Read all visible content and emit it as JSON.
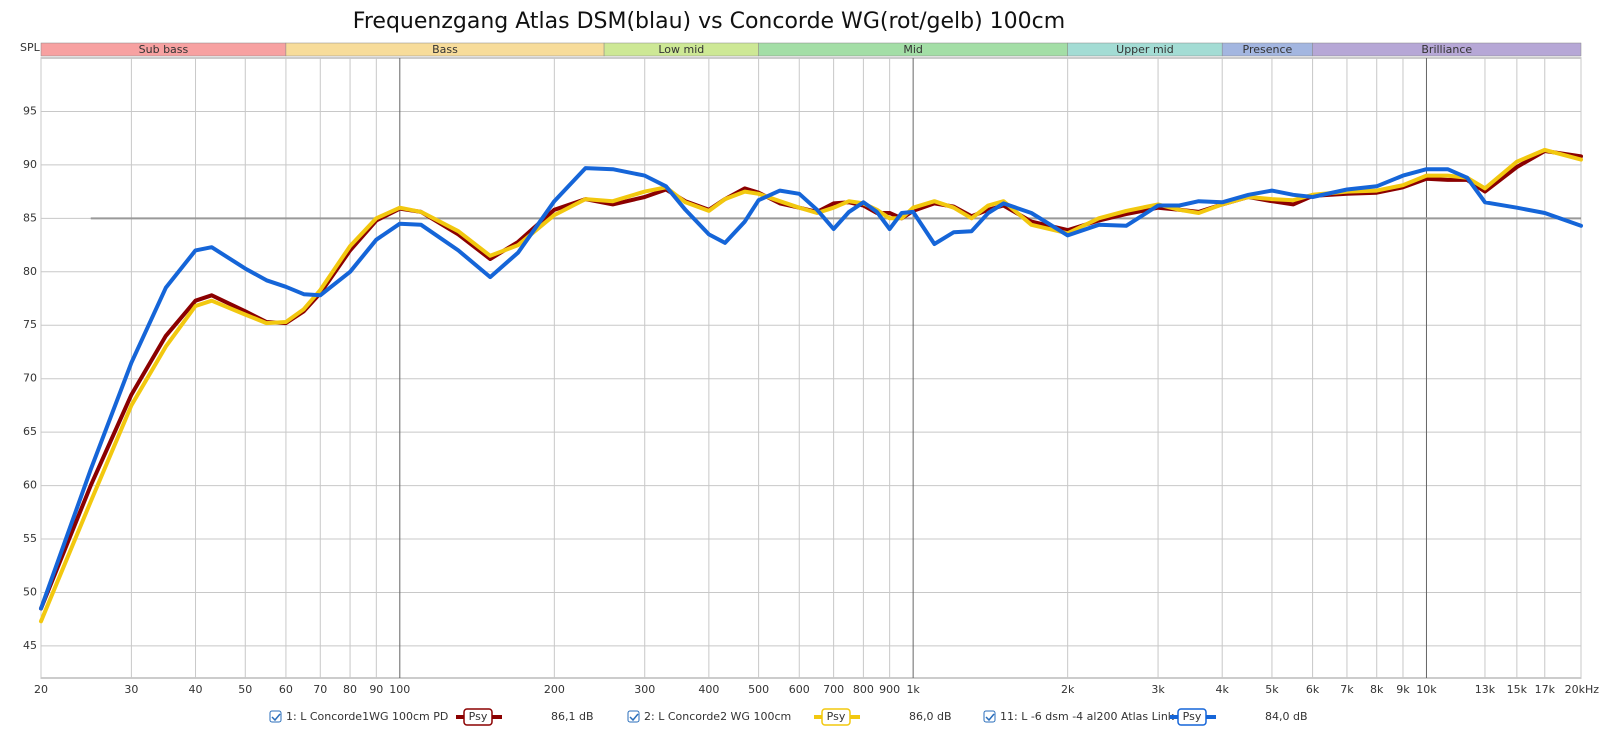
{
  "chart_data": {
    "type": "line",
    "title": "Frequenzgang Atlas DSM(blau) vs Concorde WG(rot/gelb) 100cm",
    "y_axis_label": "SPL",
    "log_x": true,
    "grid": true,
    "xlim": [
      20,
      20000
    ],
    "ylim": [
      42,
      100
    ],
    "xticks": [
      20,
      30,
      40,
      50,
      60,
      70,
      80,
      90,
      100,
      200,
      300,
      400,
      500,
      600,
      700,
      800,
      900,
      {
        "value": 1000,
        "label": "1k"
      },
      {
        "value": 2000,
        "label": "2k"
      },
      {
        "value": 3000,
        "label": "3k"
      },
      {
        "value": 4000,
        "label": "4k"
      },
      {
        "value": 5000,
        "label": "5k"
      },
      {
        "value": 6000,
        "label": "6k"
      },
      {
        "value": 7000,
        "label": "7k"
      },
      {
        "value": 8000,
        "label": "8k"
      },
      {
        "value": 9000,
        "label": "9k"
      },
      {
        "value": 10000,
        "label": "10k"
      },
      {
        "value": 13000,
        "label": "13k"
      },
      {
        "value": 15000,
        "label": "15k"
      },
      {
        "value": 17000,
        "label": "17k"
      },
      {
        "value": 20000,
        "label": "20kHz"
      }
    ],
    "yticks": [
      45,
      50,
      55,
      60,
      65,
      70,
      75,
      80,
      85,
      90,
      95
    ],
    "bands": [
      {
        "name": "Sub bass",
        "from": 20,
        "to": 60,
        "color": "#f7a1a1"
      },
      {
        "name": "Bass",
        "from": 60,
        "to": 250,
        "color": "#f7dc9a"
      },
      {
        "name": "Low mid",
        "from": 250,
        "to": 500,
        "color": "#cde895"
      },
      {
        "name": "Mid",
        "from": 500,
        "to": 2000,
        "color": "#a3dea6"
      },
      {
        "name": "Upper mid",
        "from": 2000,
        "to": 4000,
        "color": "#a3dcd4"
      },
      {
        "name": "Presence",
        "from": 4000,
        "to": 6000,
        "color": "#a3b6e0"
      },
      {
        "name": "Brilliance",
        "from": 6000,
        "to": 20000,
        "color": "#b6a7d6"
      }
    ],
    "reference_line": {
      "value": 85,
      "from": 25,
      "to": 20000
    },
    "x": [
      20,
      25,
      30,
      35,
      40,
      43,
      50,
      55,
      60,
      65,
      70,
      80,
      90,
      100,
      110,
      130,
      150,
      170,
      200,
      230,
      260,
      300,
      330,
      360,
      400,
      430,
      470,
      500,
      550,
      600,
      650,
      700,
      750,
      800,
      850,
      900,
      950,
      1000,
      1100,
      1200,
      1300,
      1400,
      1500,
      1700,
      2000,
      2300,
      2600,
      3000,
      3300,
      3600,
      4000,
      4500,
      5000,
      5500,
      6000,
      7000,
      8000,
      9000,
      10000,
      11000,
      12000,
      13000,
      15000,
      17000,
      20000
    ],
    "series": [
      {
        "name": "1: L Concorde1WG 100cm PD",
        "color": "#8b0000",
        "level": "86,1 dB",
        "smoothing": "Psy",
        "values": [
          48.5,
          60,
          68.5,
          74,
          77.3,
          77.8,
          76.3,
          75.3,
          75.2,
          76.3,
          78,
          82,
          84.8,
          85.9,
          85.6,
          83.5,
          81.2,
          82.8,
          85.8,
          86.8,
          86.3,
          87,
          87.7,
          86.6,
          85.8,
          86.8,
          87.8,
          87.4,
          86.4,
          86,
          85.6,
          86.4,
          86.5,
          86.2,
          85.5,
          85.5,
          85,
          85.7,
          86.4,
          86.1,
          85.2,
          85.8,
          86.2,
          84.7,
          83.9,
          84.8,
          85.4,
          86,
          85.8,
          85.6,
          86.3,
          87,
          86.6,
          86.3,
          87.1,
          87.3,
          87.4,
          87.9,
          88.7,
          88.6,
          88.6,
          87.5,
          89.8,
          91.3,
          90.8
        ]
      },
      {
        "name": "2: L Concorde2 WG 100cm",
        "color": "#f2c80f",
        "level": "86,0 dB",
        "smoothing": "Psy",
        "values": [
          47.3,
          58.5,
          67.5,
          73,
          76.8,
          77.3,
          76,
          75.2,
          75.3,
          76.5,
          78.3,
          82.4,
          85,
          86,
          85.6,
          83.8,
          81.5,
          82.5,
          85.3,
          86.8,
          86.6,
          87.5,
          87.9,
          86.5,
          85.7,
          86.8,
          87.5,
          87.3,
          86.6,
          86,
          85.5,
          86,
          86.6,
          86.4,
          85.8,
          85,
          85,
          86,
          86.6,
          86,
          85,
          86.2,
          86.6,
          84.4,
          83.6,
          85,
          85.7,
          86.3,
          85.8,
          85.5,
          86.3,
          87,
          86.8,
          86.7,
          87.2,
          87.5,
          87.6,
          88.1,
          89,
          89,
          88.8,
          87.8,
          90.3,
          91.4,
          90.5
        ]
      },
      {
        "name": "11: L -6 dsm -4 al200 Atlas Link",
        "color": "#1565d8",
        "level": "84,0 dB",
        "smoothing": "Psy",
        "values": [
          48.5,
          61.5,
          71.5,
          78.5,
          82,
          82.3,
          80.3,
          79.2,
          78.6,
          77.9,
          77.8,
          80,
          83,
          84.5,
          84.4,
          82,
          79.5,
          81.8,
          86.6,
          89.7,
          89.6,
          89,
          88,
          85.8,
          83.5,
          82.7,
          84.7,
          86.7,
          87.6,
          87.3,
          85.8,
          84,
          85.6,
          86.5,
          85.6,
          84,
          85.5,
          85.6,
          82.6,
          83.7,
          83.8,
          85.5,
          86.4,
          85.5,
          83.4,
          84.4,
          84.3,
          86.2,
          86.2,
          86.6,
          86.5,
          87.2,
          87.6,
          87.2,
          87,
          87.7,
          88,
          89,
          89.6,
          89.6,
          88.8,
          86.5,
          86,
          85.5,
          84.3
        ]
      }
    ]
  }
}
